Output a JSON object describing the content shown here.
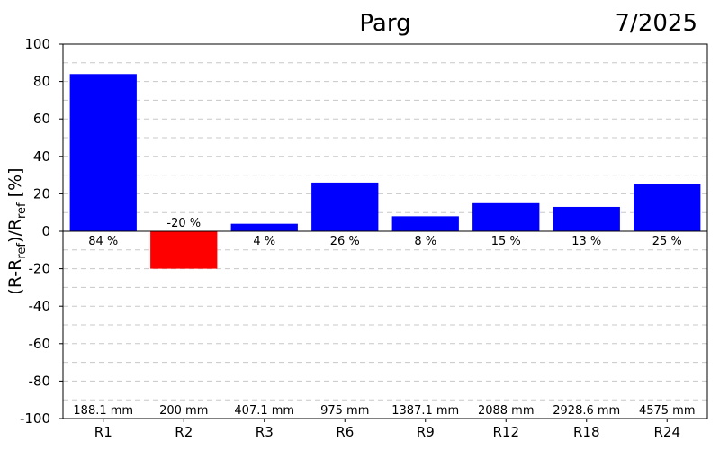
{
  "chart_data": {
    "type": "bar",
    "title": "Parg",
    "date": "7/2025",
    "ylabel": {
      "a": "(R-R",
      "sub1": "ref",
      "b": ")/R",
      "sub2": "ref",
      "c": " [%]"
    },
    "xlabel": "",
    "ylim": [
      -100,
      100
    ],
    "yticks": [
      -100,
      -80,
      -60,
      -40,
      -20,
      0,
      20,
      40,
      60,
      80,
      100
    ],
    "grid": true,
    "categories": [
      "R1",
      "R2",
      "R3",
      "R6",
      "R9",
      "R12",
      "R18",
      "R24"
    ],
    "values": [
      84,
      -20,
      4,
      26,
      8,
      15,
      13,
      25
    ],
    "value_labels": [
      "84 %",
      "-20 %",
      "4 %",
      "26 %",
      "8 %",
      "15 %",
      "13 %",
      "25 %"
    ],
    "precip_labels": [
      "188.1 mm",
      "200 mm",
      "407.1 mm",
      "975 mm",
      "1387.1 mm",
      "2088 mm",
      "2928.6 mm",
      "4575 mm"
    ],
    "colors": {
      "positive": "#0000ff",
      "negative": "#ff0000",
      "grid": "#c8c8c8",
      "axis": "#000000"
    }
  }
}
